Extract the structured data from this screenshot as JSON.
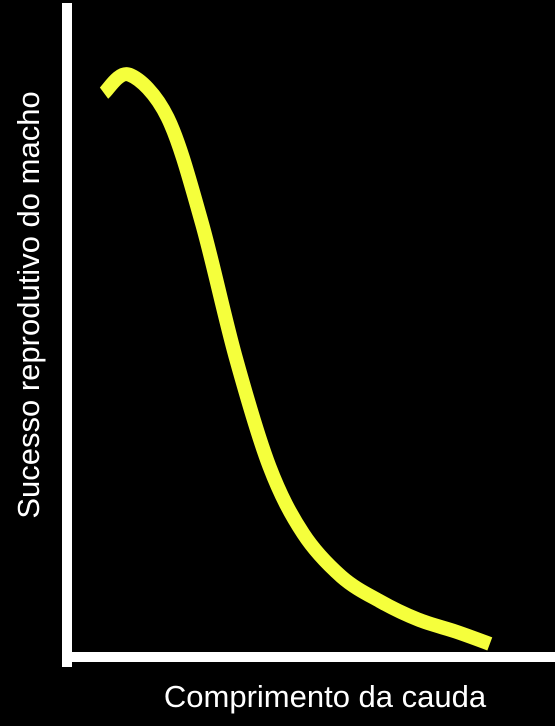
{
  "chart_data": {
    "type": "line",
    "xlabel": "Comprimento da cauda",
    "ylabel": "Sucesso reprodutivo do macho",
    "xlim": [
      0,
      1
    ],
    "ylim": [
      0,
      1
    ],
    "grid": false,
    "series": [
      {
        "color": "#f5ff3c",
        "points": [
          [
            0.0,
            0.91
          ],
          [
            0.06,
            0.94
          ],
          [
            0.15,
            0.87
          ],
          [
            0.23,
            0.7
          ],
          [
            0.31,
            0.48
          ],
          [
            0.39,
            0.3
          ],
          [
            0.47,
            0.19
          ],
          [
            0.56,
            0.12
          ],
          [
            0.65,
            0.08
          ],
          [
            0.74,
            0.05
          ],
          [
            0.83,
            0.03
          ],
          [
            0.91,
            0.01
          ]
        ]
      }
    ]
  },
  "colors": {
    "background": "#000000",
    "axes": "#ffffff",
    "text": "#ffffff"
  }
}
